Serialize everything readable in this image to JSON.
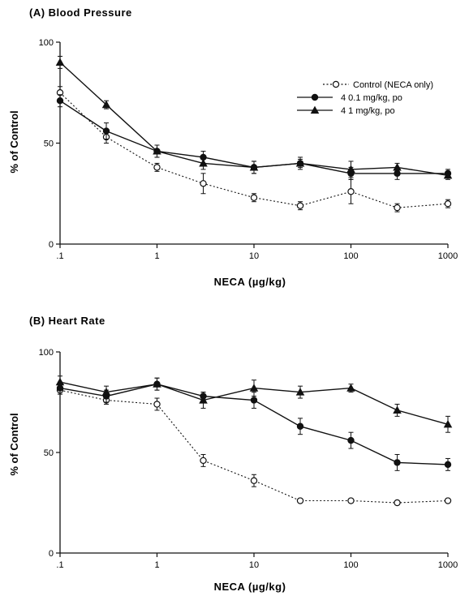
{
  "chart_data": [
    {
      "type": "line",
      "title": "(A)  Blood Pressure",
      "xlabel": "NECA  (µg/kg)",
      "ylabel": "% of Control",
      "x_scale": "log",
      "xlim": [
        0.1,
        1000
      ],
      "ylim": [
        0,
        100
      ],
      "x_ticks": [
        0.1,
        1,
        10,
        100,
        1000
      ],
      "x_tick_labels": [
        ".1",
        "1",
        "10",
        "100",
        "1000"
      ],
      "y_ticks": [
        0,
        50,
        100
      ],
      "y_tick_labels": [
        "0",
        "50",
        "100"
      ],
      "x": [
        0.1,
        0.3,
        1,
        3,
        10,
        30,
        100,
        300,
        1000
      ],
      "legend_position": "top-right",
      "grid": false,
      "series": [
        {
          "name": "Control   (NECA only)",
          "marker": "open-circle",
          "line": "dotted",
          "values": [
            75,
            53,
            38,
            30,
            23,
            19,
            26,
            18,
            20
          ],
          "errors": [
            3,
            3,
            2,
            5,
            2,
            2,
            6,
            2,
            2
          ]
        },
        {
          "name": "4   0.1 mg/kg, po",
          "marker": "filled-circle",
          "line": "solid",
          "values": [
            71,
            56,
            46,
            43,
            38,
            40,
            35,
            35,
            35
          ],
          "errors": [
            3,
            4,
            3,
            3,
            3,
            2,
            3,
            3,
            2
          ]
        },
        {
          "name": "4   1 mg/kg, po",
          "marker": "filled-triangle",
          "line": "solid",
          "values": [
            90,
            69,
            46,
            40,
            38,
            40,
            37,
            38,
            34
          ],
          "errors": [
            3,
            2,
            3,
            3,
            3,
            3,
            4,
            2,
            2
          ]
        }
      ]
    },
    {
      "type": "line",
      "title": "(B)  Heart Rate",
      "xlabel": "NECA  (µg/kg)",
      "ylabel": "% of Control",
      "x_scale": "log",
      "xlim": [
        0.1,
        1000
      ],
      "ylim": [
        0,
        100
      ],
      "x_ticks": [
        0.1,
        1,
        10,
        100,
        1000
      ],
      "x_tick_labels": [
        ".1",
        "1",
        "10",
        "100",
        "1000"
      ],
      "y_ticks": [
        0,
        50,
        100
      ],
      "y_tick_labels": [
        "0",
        "50",
        "100"
      ],
      "x": [
        0.1,
        0.3,
        1,
        3,
        10,
        30,
        100,
        300,
        1000
      ],
      "grid": false,
      "series": [
        {
          "name": "Control   (NECA only)",
          "marker": "open-circle",
          "line": "dotted",
          "values": [
            81,
            76,
            74,
            46,
            36,
            26,
            26,
            25,
            26
          ],
          "errors": [
            2,
            2,
            3,
            3,
            3,
            1,
            1,
            1,
            1
          ]
        },
        {
          "name": "4   0.1 mg/kg, po",
          "marker": "filled-circle",
          "line": "solid",
          "values": [
            82,
            78,
            84,
            78,
            76,
            63,
            56,
            45,
            44
          ],
          "errors": [
            3,
            3,
            3,
            2,
            4,
            4,
            4,
            4,
            3
          ]
        },
        {
          "name": "4   1 mg/kg, po",
          "marker": "filled-triangle",
          "line": "solid",
          "values": [
            85,
            80,
            84,
            76,
            82,
            80,
            82,
            71,
            64
          ],
          "errors": [
            3,
            3,
            3,
            4,
            4,
            3,
            2,
            3,
            4
          ]
        }
      ]
    }
  ]
}
